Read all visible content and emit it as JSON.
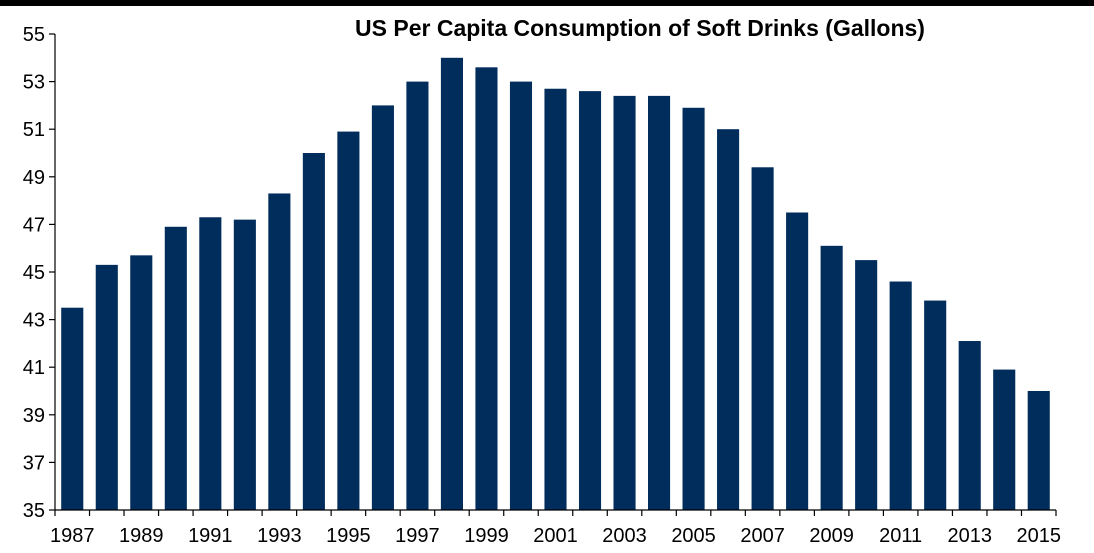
{
  "chart_data": {
    "type": "bar",
    "title": "US Per Capita Consumption of Soft Drinks (Gallons)",
    "xlabel": "",
    "ylabel": "",
    "categories": [
      "1987",
      "1988",
      "1989",
      "1990",
      "1991",
      "1992",
      "1993",
      "1994",
      "1995",
      "1996",
      "1997",
      "1998",
      "1999",
      "2000",
      "2001",
      "2002",
      "2003",
      "2004",
      "2005",
      "2006",
      "2007",
      "2008",
      "2009",
      "2010",
      "2011",
      "2012",
      "2013",
      "2014",
      "2015"
    ],
    "x_tick_labels": [
      "1987",
      "1989",
      "1991",
      "1993",
      "1995",
      "1997",
      "1999",
      "2001",
      "2003",
      "2005",
      "2007",
      "2009",
      "2011",
      "2013",
      "2015"
    ],
    "y_ticks": [
      35,
      37,
      39,
      41,
      43,
      45,
      47,
      49,
      51,
      53,
      55
    ],
    "values": [
      43.5,
      45.3,
      45.7,
      46.9,
      47.3,
      47.2,
      48.3,
      50.0,
      50.9,
      52.0,
      53.0,
      54.0,
      53.6,
      53.0,
      52.7,
      52.6,
      52.4,
      52.4,
      51.9,
      51.0,
      49.4,
      47.5,
      46.1,
      45.5,
      44.6,
      43.8,
      42.1,
      40.9,
      40.0
    ],
    "ylim": [
      35,
      55
    ],
    "grid": false,
    "legend": "none",
    "bar_color": "#002d5c"
  }
}
